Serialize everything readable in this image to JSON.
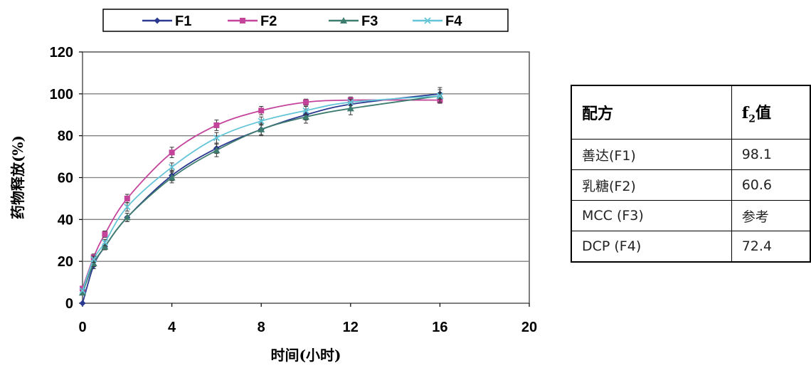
{
  "chart_data": {
    "type": "line",
    "xlabel": "时间(小时)",
    "ylabel": "药物释放(%)",
    "xlim": [
      0,
      20
    ],
    "ylim": [
      0,
      120
    ],
    "xticks": [
      0,
      4,
      8,
      12,
      16,
      20
    ],
    "yticks": [
      0,
      20,
      40,
      60,
      80,
      100,
      120
    ],
    "grid": "horizontal",
    "legend_position": "top",
    "x": [
      0,
      0.5,
      1,
      2,
      4,
      6,
      8,
      10,
      12,
      16
    ],
    "series": [
      {
        "name": "F1",
        "color": "#2b3990",
        "marker": "diamond",
        "values": [
          0,
          18,
          27,
          41,
          61,
          74,
          83,
          90,
          95,
          100
        ],
        "errors": [
          0,
          1.5,
          1.5,
          2,
          2.5,
          2.5,
          2.5,
          2.5,
          2.5,
          3
        ]
      },
      {
        "name": "F2",
        "color": "#c4449c",
        "marker": "square",
        "values": [
          7,
          22,
          33,
          50,
          72,
          85,
          92,
          96,
          97,
          97
        ],
        "errors": [
          0.5,
          1.5,
          1.5,
          2,
          2.5,
          2.5,
          2,
          1.5,
          1.5,
          1.5
        ]
      },
      {
        "name": "F3",
        "color": "#3e7c70",
        "marker": "triangle",
        "values": [
          5,
          19,
          27,
          41,
          60,
          73,
          83,
          89,
          93,
          99
        ],
        "errors": [
          0.5,
          1.5,
          1.5,
          2,
          2.5,
          3,
          3,
          3,
          3,
          3
        ]
      },
      {
        "name": "F4",
        "color": "#64c5d8",
        "marker": "x",
        "values": [
          6,
          21,
          29,
          46,
          65,
          79,
          87,
          92,
          96,
          99
        ],
        "errors": [
          0.5,
          1.5,
          1.5,
          2,
          2,
          2.5,
          2,
          2,
          1.5,
          1.5
        ]
      }
    ]
  },
  "table": {
    "header_formula": "配方",
    "header_f2_main": "f",
    "header_f2_sub": "2",
    "header_f2_suffix": "值",
    "rows": [
      {
        "formula": "善达(F1)",
        "value": "98.1"
      },
      {
        "formula": "乳糖(F2)",
        "value": "60.6"
      },
      {
        "formula": "MCC (F3)",
        "value": "参考"
      },
      {
        "formula": "DCP (F4)",
        "value": "72.4"
      }
    ]
  }
}
